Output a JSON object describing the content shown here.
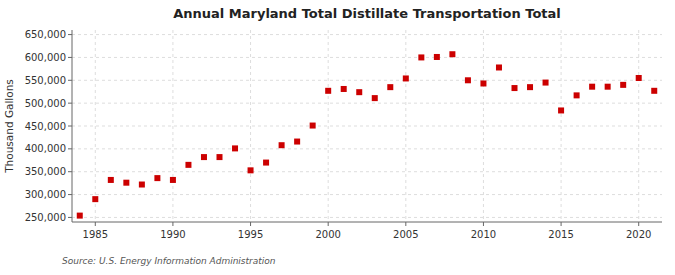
{
  "chart_data": {
    "type": "scatter",
    "title": "Annual Maryland Total Distillate Transportation Total",
    "ylabel": "Thousand Gallons",
    "annotations": [
      "Source: U.S. Energy Information Administration"
    ],
    "x": [
      1984,
      1985,
      1986,
      1987,
      1988,
      1989,
      1990,
      1991,
      1992,
      1993,
      1994,
      1995,
      1996,
      1997,
      1998,
      1999,
      2000,
      2001,
      2002,
      2003,
      2004,
      2005,
      2006,
      2007,
      2008,
      2009,
      2010,
      2011,
      2012,
      2013,
      2014,
      2015,
      2016,
      2017,
      2018,
      2019,
      2020,
      2021
    ],
    "values": [
      254000,
      290000,
      332000,
      326000,
      322000,
      336000,
      332000,
      365000,
      382000,
      382000,
      401000,
      353000,
      370000,
      408000,
      416000,
      451000,
      527000,
      531000,
      524000,
      511000,
      535000,
      554000,
      600000,
      601000,
      607000,
      550000,
      543000,
      578000,
      533000,
      535000,
      545000,
      484000,
      517000,
      536000,
      536000,
      540000,
      555000,
      527000
    ],
    "color": "#cc0000",
    "marker": "square",
    "xlim": [
      1983.5,
      2021.5
    ],
    "ylim": [
      240000,
      660000
    ],
    "xticks": [
      1985,
      1990,
      1995,
      2000,
      2005,
      2010,
      2015,
      2020
    ],
    "yticks": [
      {
        "value": 250000,
        "label": "250,000"
      },
      {
        "value": 300000,
        "label": "300,000"
      },
      {
        "value": 350000,
        "label": "350,000"
      },
      {
        "value": 400000,
        "label": "400,000"
      },
      {
        "value": 450000,
        "label": "450,000"
      },
      {
        "value": 500000,
        "label": "500,000"
      },
      {
        "value": 550000,
        "label": "550,000"
      },
      {
        "value": 600000,
        "label": "600,000"
      },
      {
        "value": 650000,
        "label": "650,000"
      }
    ],
    "grid": true
  }
}
